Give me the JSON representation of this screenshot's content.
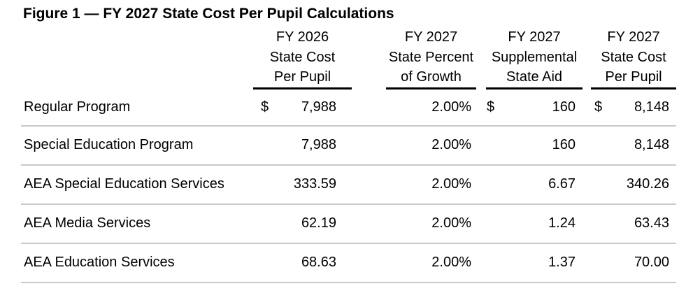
{
  "title": "Figure 1 — FY 2027 State Cost Per Pupil Calculations",
  "colors": {
    "text": "#000000",
    "header_rule": "#000000",
    "row_divider": "#c9c9c9",
    "background": "#ffffff"
  },
  "table": {
    "columns": [
      {
        "header": "FY 2026\nState Cost\nPer Pupil"
      },
      {
        "header": "FY 2027\nState Percent\nof Growth"
      },
      {
        "header": "FY 2027\nSupplemental\nState Aid"
      },
      {
        "header": "FY 2027\nState Cost\nPer Pupil"
      }
    ],
    "rows": [
      {
        "label": "Regular Program",
        "fy2026": {
          "currency": "$",
          "value": "7,988"
        },
        "growth": "2.00%",
        "aid": {
          "currency": "$",
          "value": "160"
        },
        "fy2027": {
          "currency": "$",
          "value": "8,148"
        }
      },
      {
        "label": "Special Education Program",
        "fy2026": {
          "currency": "",
          "value": "7,988"
        },
        "growth": "2.00%",
        "aid": {
          "currency": "",
          "value": "160"
        },
        "fy2027": {
          "currency": "",
          "value": "8,148"
        }
      },
      {
        "label": "AEA Special Education Services",
        "fy2026": {
          "currency": "",
          "value": "333.59"
        },
        "growth": "2.00%",
        "aid": {
          "currency": "",
          "value": "6.67"
        },
        "fy2027": {
          "currency": "",
          "value": "340.26"
        }
      },
      {
        "label": "AEA Media Services",
        "fy2026": {
          "currency": "",
          "value": "62.19"
        },
        "growth": "2.00%",
        "aid": {
          "currency": "",
          "value": "1.24"
        },
        "fy2027": {
          "currency": "",
          "value": "63.43"
        }
      },
      {
        "label": "AEA Education Services",
        "fy2026": {
          "currency": "",
          "value": "68.63"
        },
        "growth": "2.00%",
        "aid": {
          "currency": "",
          "value": "1.37"
        },
        "fy2027": {
          "currency": "",
          "value": "70.00"
        }
      }
    ]
  }
}
